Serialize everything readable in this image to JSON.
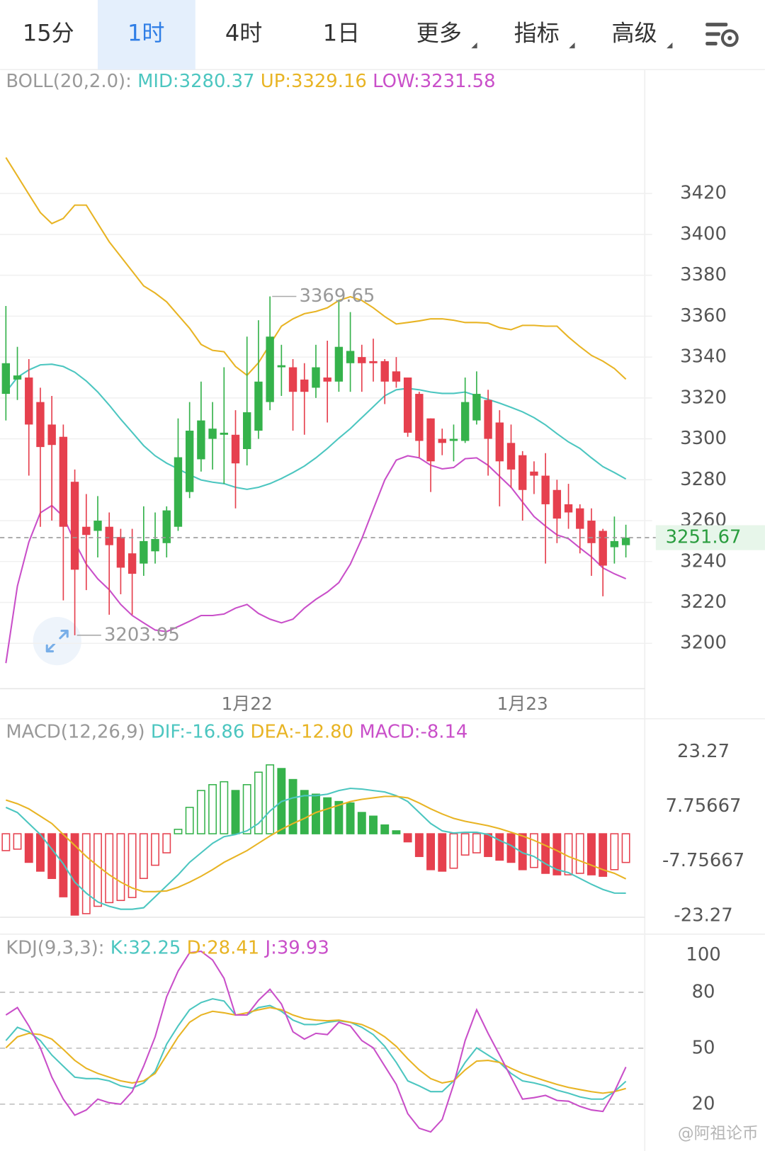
{
  "toolbar": {
    "tabs": [
      {
        "label": "15分"
      },
      {
        "label": "1时",
        "selected": true
      },
      {
        "label": "4时"
      },
      {
        "label": "1日"
      },
      {
        "label": "更多",
        "dropdown": true
      },
      {
        "label": "指标",
        "dropdown": true
      },
      {
        "label": "高级",
        "dropdown": true
      }
    ]
  },
  "chart_data": [
    {
      "type": "candlestick",
      "indicator": "BOLL(20,2.0):",
      "categories": [
        null,
        null,
        null,
        null,
        null,
        null,
        null,
        null,
        null,
        null,
        null,
        null,
        null,
        null,
        null,
        null,
        null,
        null,
        null,
        null,
        null,
        "1月22",
        null,
        null,
        null,
        null,
        null,
        null,
        null,
        null,
        null,
        null,
        null,
        null,
        null,
        null,
        null,
        null,
        null,
        null,
        null,
        null,
        null,
        null,
        null,
        "1月23",
        null,
        null,
        null,
        null,
        null,
        null,
        null,
        null,
        null
      ],
      "open": [
        3322,
        3329,
        3330,
        3318,
        3307,
        3301,
        3279,
        3257,
        3255,
        3257,
        3252,
        3244,
        3239,
        3245,
        3249,
        3257,
        3274,
        3290,
        3300,
        3302,
        3302,
        3295,
        3304,
        3318,
        3335,
        3335,
        3329,
        3325,
        3330,
        3328,
        3337,
        3340,
        3338,
        3338,
        3333,
        3330,
        3322,
        3310,
        3300,
        3299,
        3299,
        3309,
        3319,
        3308,
        3298,
        3292,
        3284,
        3282,
        3275,
        3268,
        3266,
        3260,
        3255,
        3247,
        3248
      ],
      "high": [
        3365,
        3345,
        3339,
        3325,
        3321,
        3307,
        3285,
        3273,
        3272,
        3264,
        3256,
        3256,
        3267,
        3264,
        3267,
        3310,
        3318,
        3328,
        3318,
        3335,
        3314,
        3350,
        3358,
        3369.65,
        3346,
        3339,
        3337,
        3346,
        3348,
        3368,
        3362,
        3346,
        3349,
        3339,
        3340,
        3330,
        3323,
        3310,
        3305,
        3307,
        3330,
        3333,
        3324,
        3314,
        3307,
        3294,
        3289,
        3293,
        3280,
        3278,
        3268,
        3266,
        3256,
        3262,
        3258
      ],
      "low": [
        3309,
        3319,
        3282,
        3257,
        3260,
        3221,
        3203.95,
        3226,
        3242,
        3214,
        3224,
        3214,
        3233,
        3239,
        3242,
        3255,
        3271,
        3284,
        3285,
        3278,
        3266,
        3287,
        3300,
        3314,
        3321,
        3304,
        3302,
        3320,
        3308,
        3323,
        3323,
        3323,
        3328,
        3317,
        3325,
        3301,
        3291,
        3274,
        3292,
        3289,
        3298,
        3307,
        3282,
        3267,
        3276,
        3260,
        3273,
        3239,
        3249,
        3256,
        3244,
        3233,
        3223,
        3239,
        3242
      ],
      "close": [
        3337,
        3331,
        3307,
        3296,
        3297,
        3257,
        3236,
        3253,
        3260,
        3248,
        3237,
        3234,
        3250,
        3251,
        3265,
        3291,
        3304,
        3309,
        3305,
        3303,
        3288,
        3313,
        3328,
        3350,
        3336,
        3323,
        3323,
        3335,
        3328,
        3345,
        3343,
        3337,
        3337,
        3328,
        3328,
        3303,
        3299,
        3289,
        3298,
        3300,
        3318,
        3322,
        3300,
        3289,
        3285,
        3275,
        3282,
        3268,
        3261,
        3264,
        3256,
        3249,
        3238,
        3250,
        3251.67
      ],
      "up_color": "#35b24b",
      "down_color": "#e6404e",
      "series": [
        {
          "name": "MID:3280.37",
          "color": "#4cc6c0",
          "values": [
            3322.9,
            3330.1,
            3333.7,
            3336.2,
            3336.5,
            3335.4,
            3332.6,
            3328.3,
            3322.9,
            3316.5,
            3309.6,
            3303.2,
            3296.7,
            3291.7,
            3288.1,
            3285.3,
            3282.4,
            3279.9,
            3278.8,
            3278.1,
            3276.3,
            3275.3,
            3276.3,
            3278.1,
            3280.6,
            3283.5,
            3286.7,
            3290.7,
            3295.3,
            3300.3,
            3305,
            3310.4,
            3315.7,
            3321.1,
            3324,
            3324.7,
            3324,
            3322.9,
            3322.2,
            3322.2,
            3322.9,
            3321.1,
            3319.3,
            3317.5,
            3315.4,
            3313.2,
            3310.4,
            3306.8,
            3302.5,
            3298.5,
            3295.3,
            3290.7,
            3286.4,
            3283.5,
            3280.37
          ]
        },
        {
          "name": "UP:3329.16",
          "color": "#e8b424",
          "values": [
            3437.6,
            3428.6,
            3419.6,
            3410.7,
            3405.3,
            3407.8,
            3414.3,
            3414.3,
            3405.3,
            3396.4,
            3389.2,
            3382,
            3374.8,
            3371.3,
            3367,
            3360.5,
            3354.1,
            3346.2,
            3343.3,
            3342.6,
            3335.4,
            3331.1,
            3337.2,
            3346.2,
            3355.1,
            3358.7,
            3361.2,
            3362.3,
            3364.1,
            3367.7,
            3369.5,
            3367.7,
            3364.1,
            3359.8,
            3356.2,
            3356.9,
            3357.7,
            3358.7,
            3358.7,
            3358,
            3356.9,
            3356.9,
            3356.6,
            3354.4,
            3353.4,
            3355.5,
            3355.5,
            3355.1,
            3355.1,
            3349.8,
            3345.1,
            3340.8,
            3338,
            3334.4,
            3329.16
          ]
        },
        {
          "name": "LOW:3231.58",
          "color": "#c94fc9",
          "values": [
            3190.3,
            3228,
            3249.5,
            3263.8,
            3267.4,
            3262,
            3249.5,
            3238.7,
            3231.5,
            3226.2,
            3219,
            3213.6,
            3210,
            3206.5,
            3205.7,
            3208.2,
            3210.8,
            3213.6,
            3213.6,
            3214.3,
            3217.2,
            3219,
            3214.6,
            3211.8,
            3210,
            3211.8,
            3217.2,
            3221.5,
            3225.1,
            3229.7,
            3238.7,
            3251.2,
            3265.6,
            3279.9,
            3289.6,
            3291.7,
            3290.7,
            3287.1,
            3285.3,
            3286,
            3290.3,
            3290.7,
            3287.1,
            3281.7,
            3276.3,
            3269.1,
            3262,
            3257.3,
            3253,
            3251.2,
            3246.6,
            3242.3,
            3236.9,
            3234,
            3231.58
          ]
        }
      ],
      "ylim": [
        3177.8,
        3480.6
      ],
      "yticks": [
        3200,
        3220,
        3240,
        3260,
        3280,
        3300,
        3320,
        3340,
        3360,
        3380,
        3400,
        3420
      ],
      "grid": true,
      "last_price": 3251.67,
      "last_price_color": "#2a9d3f",
      "max_label": "3369.65",
      "min_label": "3203.95"
    },
    {
      "type": "macd",
      "indicator": "MACD(12,26,9)",
      "series": [
        {
          "name": "DIF:-16.86",
          "color": "#4cc6c0",
          "values": [
            7.48,
            6.03,
            2.91,
            -0.21,
            -4.36,
            -8.52,
            -13.71,
            -16.83,
            -19.32,
            -20.57,
            -21.4,
            -21.4,
            -20.98,
            -17.87,
            -14.75,
            -11.64,
            -8.1,
            -5.4,
            -2.7,
            -0.83,
            -0.21,
            0.83,
            2.91,
            6.44,
            9.14,
            10.18,
            10.8,
            10.8,
            11.22,
            12.26,
            12.88,
            12.67,
            12.26,
            11.84,
            10.8,
            9.14,
            6.03,
            2.91,
            0.83,
            0.21,
            0.42,
            0.42,
            -0.21,
            -1.87,
            -3.32,
            -5.4,
            -6.44,
            -8.52,
            -10.18,
            -11.01,
            -12.67,
            -14.34,
            -15.79,
            -16.83,
            -16.86
          ]
        },
        {
          "name": "DEA:-12.80",
          "color": "#e8b424",
          "values": [
            9.56,
            8.52,
            7.06,
            4.99,
            2.91,
            -0.21,
            -3.32,
            -6.44,
            -9.14,
            -11.64,
            -13.71,
            -15.37,
            -16.41,
            -16.41,
            -16.21,
            -15.17,
            -13.71,
            -12.05,
            -10.18,
            -8.1,
            -6.44,
            -4.78,
            -2.7,
            -0.62,
            1.25,
            2.91,
            4.36,
            6.03,
            7.06,
            8.1,
            9.14,
            9.77,
            10.18,
            10.6,
            10.6,
            10.18,
            8.73,
            7.06,
            5.61,
            4.36,
            3.53,
            2.91,
            2.29,
            1.45,
            0.42,
            -0.62,
            -1.87,
            -3.32,
            -4.78,
            -6.44,
            -7.69,
            -8.93,
            -10.18,
            -11.22,
            -12.8
          ]
        }
      ],
      "histogram": {
        "name": "MACD:-8.14",
        "color": "#c94fc9",
        "up_color": "#35b24b",
        "down_color": "#e6404e",
        "values": [
          -4.78,
          -4.36,
          -8.1,
          -10.6,
          -12.67,
          -17.87,
          -23.06,
          -22.65,
          -20.57,
          -19.53,
          -18.91,
          -18.08,
          -12.67,
          -8.93,
          -5.4,
          1.25,
          7.48,
          12.26,
          13.92,
          14.75,
          12.26,
          13.92,
          17.45,
          19.53,
          18.49,
          15.37,
          12.26,
          11.22,
          10.18,
          9.14,
          8.73,
          6.03,
          4.99,
          2.49,
          0.83,
          -2.29,
          -6.44,
          -10.18,
          -10.6,
          -9.77,
          -6.03,
          -5.4,
          -6.44,
          -7.48,
          -8.1,
          -10.18,
          -9.56,
          -11.22,
          -11.64,
          -11.64,
          -11.22,
          -11.64,
          -12.05,
          -10.18,
          -8.14
        ]
      },
      "ylim": [
        -23.27,
        32.2
      ],
      "yticks": [
        -23.27,
        -7.75667,
        7.75667,
        23.27
      ]
    },
    {
      "type": "kdj",
      "indicator": "KDJ(9,3,3):",
      "series": [
        {
          "name": "K:32.25",
          "color": "#4cc6c0",
          "values": [
            54.1,
            61.2,
            58.8,
            54.1,
            46.3,
            40.4,
            34.5,
            33.7,
            33.7,
            32.5,
            29.8,
            28.6,
            31.4,
            37.6,
            52.2,
            62,
            70.6,
            74.5,
            76.5,
            75.3,
            67.8,
            67.8,
            71.8,
            72.9,
            69.8,
            65.1,
            62.7,
            62.7,
            63.9,
            64.7,
            63.9,
            61.2,
            57.3,
            51,
            42.4,
            32.5,
            29.8,
            26.7,
            26.7,
            32.5,
            42.4,
            50.2,
            46.3,
            42.4,
            36.5,
            32.5,
            31.4,
            29.8,
            27.5,
            25.9,
            23.9,
            22.7,
            22.7,
            26.7,
            32.25
          ]
        },
        {
          "name": "D:28.41",
          "color": "#e8b424",
          "values": [
            50.2,
            56.1,
            58,
            57.3,
            54.9,
            49.4,
            43.5,
            39.2,
            36.5,
            34.5,
            32.5,
            31.4,
            32.5,
            36.5,
            46.3,
            56.1,
            63.9,
            67.8,
            69.8,
            69,
            67.8,
            69,
            70.6,
            71.8,
            70.6,
            67.8,
            65.9,
            65.1,
            64.7,
            65.1,
            63.9,
            62.7,
            60,
            56.1,
            51,
            44.3,
            38.4,
            33.7,
            31.4,
            32.5,
            38.4,
            43.1,
            43.5,
            42.4,
            39.2,
            36.5,
            34.5,
            32.5,
            30.6,
            29,
            27.8,
            26.7,
            25.9,
            26.7,
            28.41
          ]
        },
        {
          "name": "J:39.93",
          "color": "#c94fc9",
          "values": [
            67.8,
            71.8,
            62,
            50.2,
            34.5,
            22.7,
            14.1,
            16.9,
            22.7,
            20.8,
            20,
            26.7,
            40.4,
            56.1,
            77.6,
            91.4,
            101.2,
            102,
            97.3,
            87.5,
            67.8,
            67.8,
            75.7,
            81.6,
            73.7,
            58.8,
            54.9,
            58,
            57.3,
            63.9,
            62,
            54.1,
            50.2,
            40.4,
            30.6,
            14.9,
            7.1,
            5.1,
            11.8,
            30.6,
            54.1,
            70.6,
            58,
            46.3,
            34.5,
            22.7,
            23.5,
            24.7,
            22,
            21.6,
            18.8,
            16.9,
            16.1,
            26.7,
            39.93
          ]
        }
      ],
      "ylim": [
        0,
        110
      ],
      "yticks": [
        20,
        50,
        80,
        100
      ],
      "reference_lines": [
        20,
        50,
        80
      ]
    }
  ],
  "watermark": "@阿祖论币"
}
